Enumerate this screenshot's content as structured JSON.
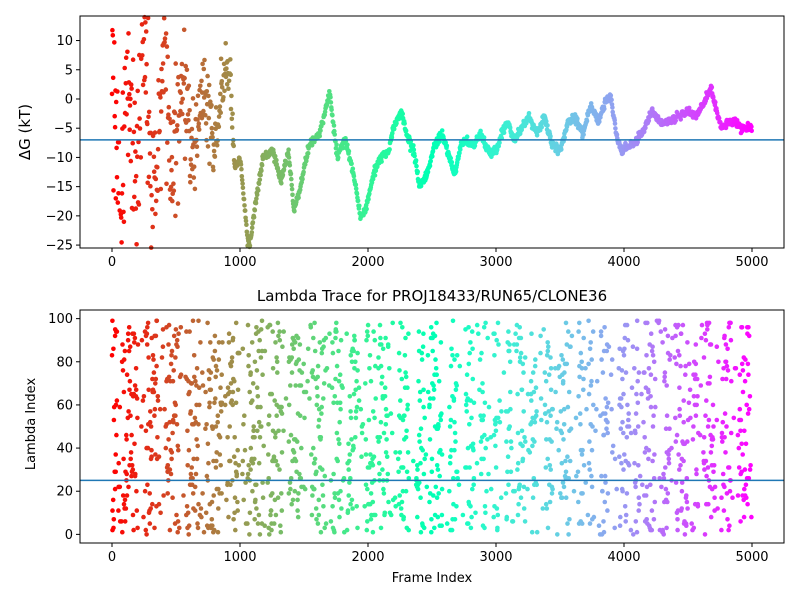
{
  "chart_data": [
    {
      "type": "scatter",
      "title": "",
      "xlabel": "",
      "ylabel": "ΔG (kT)",
      "xlim": [
        -250,
        5250
      ],
      "ylim": [
        -25.5,
        14.2
      ],
      "xticks": [
        0,
        1000,
        2000,
        3000,
        4000,
        5000
      ],
      "yticks": [
        -25,
        -20,
        -15,
        -10,
        -5,
        0,
        5,
        10
      ],
      "hline": -7.0,
      "hline_color": "#1f77b4",
      "colormap": "rainbow",
      "colormap_reversed": true,
      "x_range": [
        0,
        5000
      ],
      "trajectory_knots": [
        [
          0,
          12
        ],
        [
          60,
          -22
        ],
        [
          120,
          10
        ],
        [
          180,
          -15
        ],
        [
          240,
          12
        ],
        [
          320,
          -20
        ],
        [
          400,
          6
        ],
        [
          480,
          -12
        ],
        [
          560,
          3
        ],
        [
          640,
          -10
        ],
        [
          720,
          4
        ],
        [
          800,
          -9
        ],
        [
          880,
          5
        ],
        [
          920,
          3
        ],
        [
          960,
          -12
        ],
        [
          1000,
          -10
        ],
        [
          1060,
          -24
        ],
        [
          1080,
          -25
        ],
        [
          1120,
          -18
        ],
        [
          1180,
          -10
        ],
        [
          1260,
          -9
        ],
        [
          1320,
          -14
        ],
        [
          1380,
          -9
        ],
        [
          1420,
          -19
        ],
        [
          1460,
          -16
        ],
        [
          1540,
          -8
        ],
        [
          1620,
          -6
        ],
        [
          1700,
          1
        ],
        [
          1760,
          -10
        ],
        [
          1820,
          -7
        ],
        [
          1880,
          -12
        ],
        [
          1940,
          -20
        ],
        [
          1980,
          -19
        ],
        [
          2040,
          -13
        ],
        [
          2100,
          -10
        ],
        [
          2160,
          -9
        ],
        [
          2200,
          -5
        ],
        [
          2260,
          -2
        ],
        [
          2300,
          -6
        ],
        [
          2360,
          -9
        ],
        [
          2400,
          -15
        ],
        [
          2460,
          -13
        ],
        [
          2520,
          -8
        ],
        [
          2580,
          -6
        ],
        [
          2620,
          -9
        ],
        [
          2680,
          -13
        ],
        [
          2720,
          -8
        ],
        [
          2760,
          -7
        ],
        [
          2820,
          -8
        ],
        [
          2880,
          -6
        ],
        [
          2940,
          -9
        ],
        [
          3000,
          -9
        ],
        [
          3060,
          -5
        ],
        [
          3100,
          -4
        ],
        [
          3140,
          -7
        ],
        [
          3200,
          -5
        ],
        [
          3260,
          -3
        ],
        [
          3320,
          -6
        ],
        [
          3380,
          -3
        ],
        [
          3440,
          -8
        ],
        [
          3500,
          -9
        ],
        [
          3560,
          -4
        ],
        [
          3620,
          -3
        ],
        [
          3680,
          -6
        ],
        [
          3740,
          -1
        ],
        [
          3800,
          -4
        ],
        [
          3860,
          0
        ],
        [
          3900,
          0
        ],
        [
          3940,
          -6
        ],
        [
          3980,
          -9
        ],
        [
          4040,
          -8
        ],
        [
          4100,
          -7
        ],
        [
          4160,
          -5
        ],
        [
          4220,
          -2
        ],
        [
          4280,
          -4
        ],
        [
          4340,
          -4
        ],
        [
          4420,
          -3
        ],
        [
          4500,
          -2
        ],
        [
          4560,
          -3
        ],
        [
          4620,
          -1
        ],
        [
          4680,
          2
        ],
        [
          4720,
          -2
        ],
        [
          4760,
          -5
        ],
        [
          4800,
          -4
        ],
        [
          4860,
          -4
        ],
        [
          4920,
          -5
        ],
        [
          5000,
          -5
        ]
      ],
      "points_note_free": true
    },
    {
      "type": "scatter",
      "title": "Lambda Trace for PROJ18433/RUN65/CLONE36",
      "xlabel": "Frame Index",
      "ylabel": "Lambda Index",
      "xlim": [
        -250,
        5250
      ],
      "ylim": [
        -4,
        104
      ],
      "xticks": [
        0,
        1000,
        2000,
        3000,
        4000,
        5000
      ],
      "yticks": [
        0,
        20,
        40,
        60,
        80,
        100
      ],
      "hline": 25,
      "hline_color": "#1f77b4",
      "colormap": "rainbow",
      "colormap_reversed": true,
      "x_range": [
        0,
        5000
      ],
      "y_range": [
        0,
        99
      ],
      "dense_bands": [
        [
          0,
          40
        ],
        [
          80,
          200
        ],
        [
          260,
          360
        ],
        [
          420,
          520
        ],
        [
          580,
          680
        ],
        [
          740,
          860
        ],
        [
          900,
          990
        ],
        [
          1060,
          1180
        ],
        [
          1220,
          1330
        ],
        [
          1380,
          1480
        ],
        [
          1560,
          1660
        ],
        [
          1720,
          1790
        ],
        [
          1840,
          1920
        ],
        [
          1980,
          2060
        ],
        [
          2080,
          2160
        ],
        [
          2240,
          2320
        ],
        [
          2380,
          2440
        ],
        [
          2480,
          2580
        ],
        [
          2640,
          2700
        ],
        [
          2760,
          2830
        ],
        [
          2880,
          2920
        ],
        [
          2980,
          3020
        ],
        [
          3080,
          3120
        ],
        [
          3160,
          3220
        ],
        [
          3270,
          3320
        ],
        [
          3380,
          3440
        ],
        [
          3500,
          3580
        ],
        [
          3640,
          3680
        ],
        [
          3720,
          3760
        ],
        [
          3820,
          3880
        ],
        [
          3960,
          4040
        ],
        [
          4080,
          4120
        ],
        [
          4160,
          4240
        ],
        [
          4300,
          4360
        ],
        [
          4400,
          4500
        ],
        [
          4540,
          4580
        ],
        [
          4620,
          4700
        ],
        [
          4760,
          4840
        ],
        [
          4900,
          4980
        ]
      ]
    }
  ]
}
